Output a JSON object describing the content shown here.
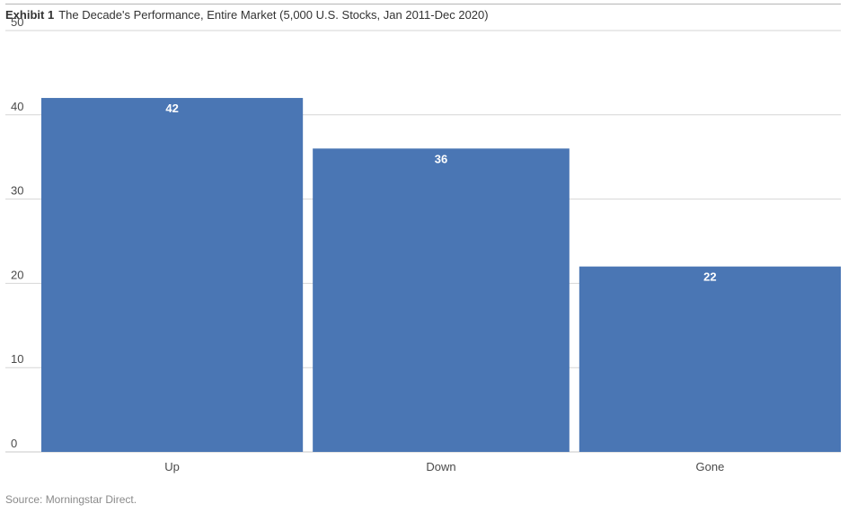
{
  "header": {
    "exhibit_label": "Exhibit 1",
    "title": "The Decade's Performance, Entire Market (5,000 U.S. Stocks, Jan 2011-Dec 2020)"
  },
  "footer": {
    "source": "Source: Morningstar Direct."
  },
  "colors": {
    "bar": "#4a76b4",
    "bar_label": "#ffffff",
    "grid": "#d6d6d6",
    "axis_text": "#4a4a4a"
  },
  "chart_data": {
    "type": "bar",
    "title": "The Decade's Performance, Entire Market (5,000 U.S. Stocks, Jan 2011-Dec 2020)",
    "categories": [
      "Up",
      "Down",
      "Gone"
    ],
    "values": [
      42,
      36,
      22
    ],
    "data_labels": [
      "42",
      "36",
      "22"
    ],
    "yticks": [
      0,
      10,
      20,
      30,
      40,
      50
    ],
    "ylim": [
      0,
      50
    ],
    "xlabel": "",
    "ylabel": "",
    "grid": true,
    "legend": "none"
  }
}
